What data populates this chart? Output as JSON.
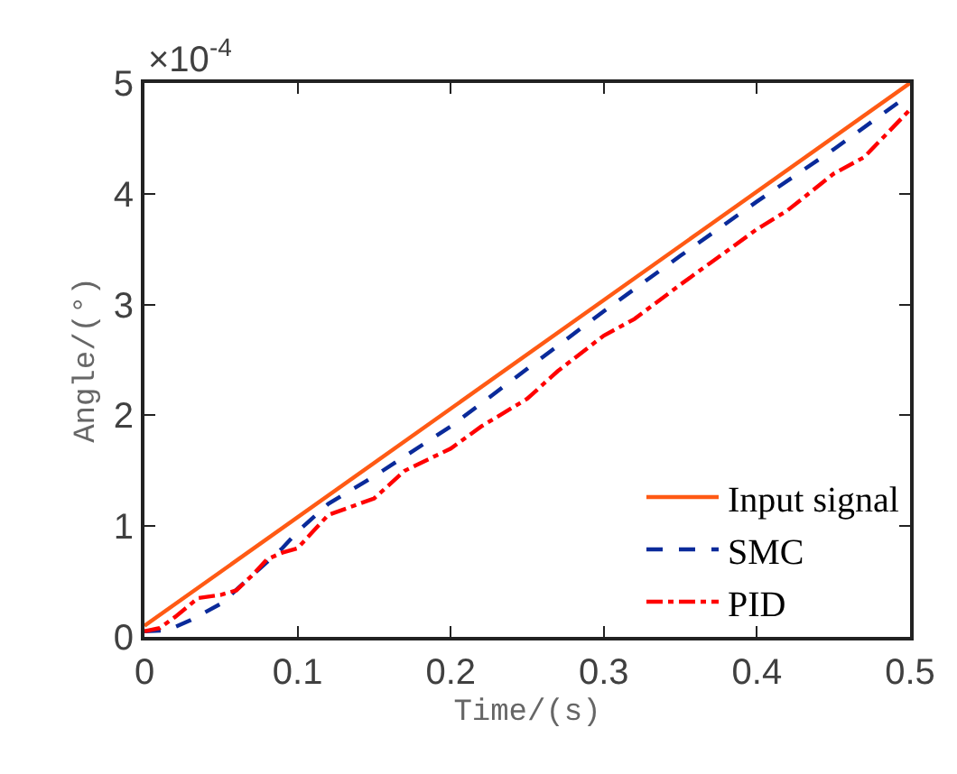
{
  "chart_data": {
    "type": "line",
    "xlabel": "Time/(s)",
    "ylabel": "Angle/(°)",
    "annotations": [
      "×10$^{-4}$"
    ],
    "xlim": [
      0,
      0.5
    ],
    "xticks": [
      0,
      0.1,
      0.2,
      0.3,
      0.4,
      0.5
    ],
    "ylim": [
      0,
      5
    ],
    "yticks": [
      0,
      1,
      2,
      3,
      4,
      5
    ],
    "legend": "bottom right",
    "series": [
      {
        "name": "Input signal",
        "color": "#ff5a14",
        "line_style": "solid",
        "x": [
          0,
          0.5
        ],
        "values": [
          0.1,
          5.0
        ]
      },
      {
        "name": "SMC",
        "color": "#0a2a9a",
        "line_style": "dashed",
        "x": [
          0,
          0.015,
          0.03,
          0.05,
          0.07,
          0.09,
          0.1,
          0.12,
          0.15,
          0.2,
          0.25,
          0.3,
          0.35,
          0.4,
          0.45,
          0.5
        ],
        "values": [
          0.05,
          0.06,
          0.15,
          0.3,
          0.55,
          0.8,
          0.95,
          1.2,
          1.45,
          1.9,
          2.42,
          2.94,
          3.44,
          3.93,
          4.4,
          4.9
        ]
      },
      {
        "name": "PID",
        "color": "#ff0000",
        "line_style": "dashdot",
        "x": [
          0,
          0.01,
          0.02,
          0.035,
          0.05,
          0.06,
          0.07,
          0.08,
          0.09,
          0.1,
          0.11,
          0.12,
          0.14,
          0.15,
          0.17,
          0.2,
          0.22,
          0.25,
          0.27,
          0.3,
          0.32,
          0.35,
          0.37,
          0.4,
          0.42,
          0.45,
          0.47,
          0.5
        ],
        "values": [
          0.05,
          0.08,
          0.18,
          0.35,
          0.38,
          0.42,
          0.55,
          0.7,
          0.76,
          0.8,
          0.95,
          1.1,
          1.2,
          1.25,
          1.5,
          1.7,
          1.9,
          2.15,
          2.4,
          2.72,
          2.87,
          3.18,
          3.38,
          3.68,
          3.85,
          4.18,
          4.33,
          4.76
        ]
      }
    ]
  }
}
